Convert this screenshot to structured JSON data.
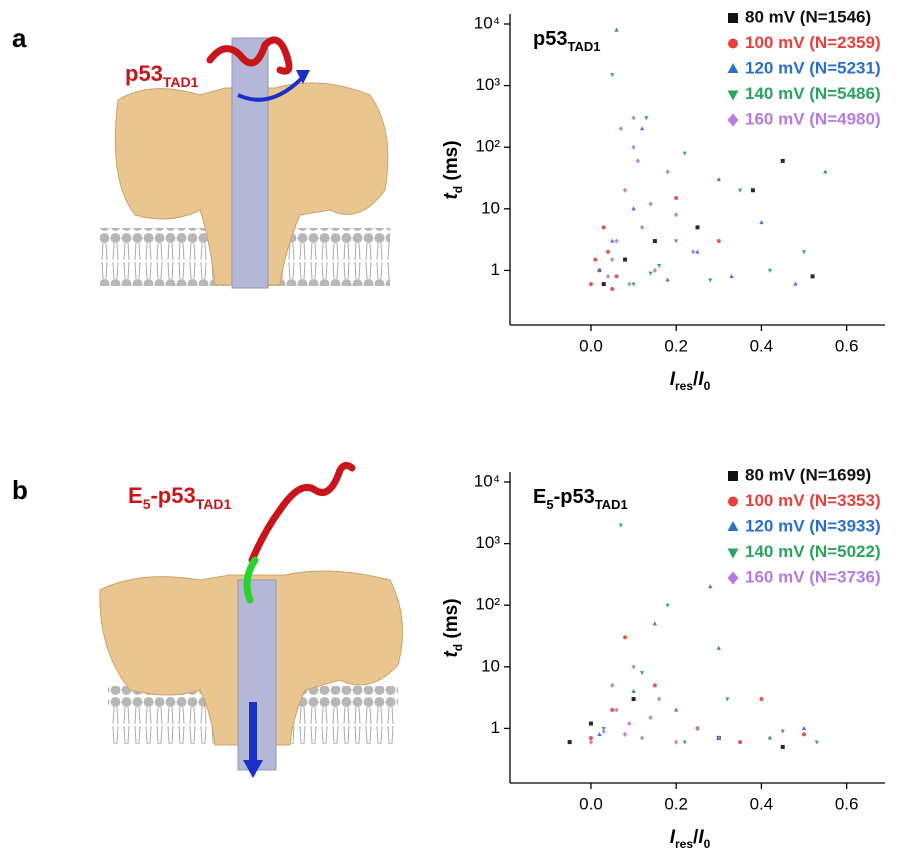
{
  "panels": [
    {
      "letter": "a",
      "label": [
        {
          "text": "p53"
        },
        {
          "text": "TAD1",
          "sub": true
        }
      ]
    },
    {
      "letter": "b",
      "label": [
        {
          "text": "E"
        },
        {
          "text": "5",
          "sub": true
        },
        {
          "text": "-p53"
        },
        {
          "text": "TAD1",
          "sub": true
        }
      ]
    }
  ],
  "chart_data": [
    {
      "type": "scatter",
      "ylog": true,
      "title": [
        {
          "text": "p53"
        },
        {
          "text": "TAD1",
          "sub": true
        }
      ],
      "xlabel": [
        {
          "text": "I",
          "italic": true
        },
        {
          "text": "res",
          "sub": true
        },
        {
          "text": "/"
        },
        {
          "text": "I",
          "italic": true
        },
        {
          "text": "0",
          "sub": true
        }
      ],
      "ylabel": [
        {
          "text": "t",
          "italic": true
        },
        {
          "text": "d",
          "sub": true
        },
        {
          "text": " (ms)"
        }
      ],
      "xlim": [
        -0.19,
        0.69
      ],
      "xticks": [
        {
          "value": 0,
          "label": "0.0"
        },
        0.2,
        0.4,
        0.6
      ],
      "ylim": [
        0.13,
        10000
      ],
      "yticks": [
        1,
        10,
        {
          "value": 100,
          "label": "10²"
        },
        {
          "value": 1000,
          "label": "10³"
        },
        {
          "value": 10000,
          "label": "10⁴"
        }
      ],
      "series": [
        {
          "name": "80 mV (N=1546)",
          "color": "#111111",
          "marker": "square",
          "x": [
            0.03,
            0.08,
            0.15,
            0.25,
            0.38,
            0.45,
            0.52
          ],
          "values": [
            0.6,
            1.5,
            3,
            5,
            20,
            60,
            0.8
          ]
        },
        {
          "name": "100 mV (N=2359)",
          "color": "#e8413c",
          "marker": "circle",
          "x": [
            0.0,
            0.02,
            0.04,
            0.06,
            0.01,
            0.03,
            0.05,
            0.2,
            0.3
          ],
          "values": [
            0.6,
            1,
            2,
            0.8,
            1.5,
            5,
            0.5,
            15,
            3
          ]
        },
        {
          "name": "120 mV (N=5231)",
          "color": "#2a6fc9",
          "marker": "triangle-up",
          "x": [
            0.02,
            0.05,
            0.1,
            0.18,
            0.25,
            0.33,
            0.4,
            0.48,
            0.55,
            0.12,
            0.3,
            0.06
          ],
          "values": [
            1,
            3,
            10,
            0.7,
            2,
            0.8,
            6,
            0.6,
            40,
            200,
            30,
            8000
          ]
        },
        {
          "name": "140 mV (N=5486)",
          "color": "#2ca25f",
          "marker": "triangle-down",
          "x": [
            0.1,
            0.14,
            0.16,
            0.2,
            0.28,
            0.35,
            0.42,
            0.05,
            0.13,
            0.22,
            0.5
          ],
          "values": [
            0.6,
            0.9,
            1.2,
            3,
            0.7,
            20,
            1,
            1500,
            300,
            80,
            2
          ]
        },
        {
          "name": "160 mV (N=4980)",
          "color": "#b57be0",
          "marker": "diamond",
          "x": [
            0.04,
            0.06,
            0.08,
            0.1,
            0.12,
            0.15,
            0.18,
            0.2,
            0.24,
            0.07,
            0.09,
            0.11,
            0.14,
            0.05,
            0.1
          ],
          "values": [
            0.8,
            3,
            20,
            100,
            5,
            1,
            40,
            8,
            2,
            200,
            0.6,
            60,
            12,
            1.5,
            300
          ]
        }
      ]
    },
    {
      "type": "scatter",
      "ylog": true,
      "title": [
        {
          "text": "E"
        },
        {
          "text": "5",
          "sub": true
        },
        {
          "text": "-p53"
        },
        {
          "text": "TAD1",
          "sub": true
        }
      ],
      "xlabel": [
        {
          "text": "I",
          "italic": true
        },
        {
          "text": "res",
          "sub": true
        },
        {
          "text": "/"
        },
        {
          "text": "I",
          "italic": true
        },
        {
          "text": "0",
          "sub": true
        }
      ],
      "ylabel": [
        {
          "text": "t",
          "italic": true
        },
        {
          "text": "d",
          "sub": true
        },
        {
          "text": " (ms)"
        }
      ],
      "xlim": [
        -0.19,
        0.69
      ],
      "xticks": [
        {
          "value": 0,
          "label": "0.0"
        },
        0.2,
        0.4,
        0.6
      ],
      "ylim": [
        0.13,
        10000
      ],
      "yticks": [
        1,
        10,
        {
          "value": 100,
          "label": "10²"
        },
        {
          "value": 1000,
          "label": "10³"
        },
        {
          "value": 10000,
          "label": "10⁴"
        }
      ],
      "series": [
        {
          "name": "80 mV (N=1699)",
          "color": "#111111",
          "marker": "square",
          "x": [
            -0.05,
            0.0,
            0.1,
            0.3,
            0.45
          ],
          "values": [
            0.6,
            1.2,
            3,
            0.7,
            0.5
          ]
        },
        {
          "name": "100 mV (N=3353)",
          "color": "#e8413c",
          "marker": "circle",
          "x": [
            0.0,
            0.05,
            0.15,
            0.25,
            0.35,
            0.08,
            0.4,
            0.5
          ],
          "values": [
            0.7,
            2,
            5,
            1,
            0.6,
            30,
            3,
            0.8
          ]
        },
        {
          "name": "120 mV (N=3933)",
          "color": "#2a6fc9",
          "marker": "triangle-up",
          "x": [
            0.02,
            0.1,
            0.2,
            0.3,
            0.42,
            0.5,
            0.15,
            0.28
          ],
          "values": [
            0.8,
            4,
            2,
            20,
            0.7,
            1,
            50,
            200
          ]
        },
        {
          "name": "140 mV (N=5022)",
          "color": "#2ca25f",
          "marker": "triangle-down",
          "x": [
            0.03,
            0.12,
            0.22,
            0.32,
            0.45,
            0.07,
            0.18,
            0.53
          ],
          "values": [
            1,
            8,
            0.6,
            3,
            0.9,
            2000,
            100,
            0.6
          ]
        },
        {
          "name": "160 mV (N=3736)",
          "color": "#b57be0",
          "marker": "diamond",
          "x": [
            0.0,
            0.03,
            0.06,
            0.09,
            0.12,
            0.16,
            0.2,
            0.25,
            0.3,
            0.05,
            0.08,
            0.1,
            0.14
          ],
          "values": [
            0.6,
            0.9,
            2,
            1.2,
            0.7,
            3,
            0.6,
            1,
            0.7,
            5,
            0.8,
            10,
            1.5
          ]
        }
      ]
    }
  ]
}
